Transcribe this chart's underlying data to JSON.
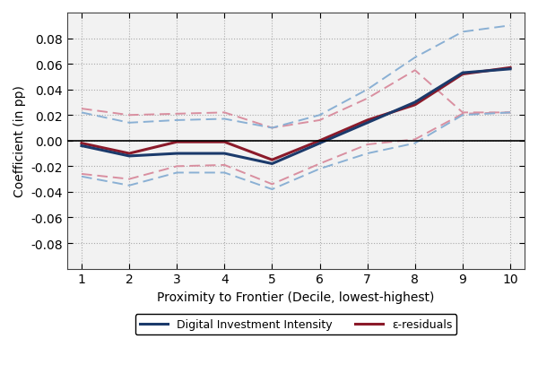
{
  "x": [
    1,
    2,
    3,
    4,
    5,
    6,
    7,
    8,
    9,
    10
  ],
  "digital_main": [
    -0.004,
    -0.012,
    -0.01,
    -0.01,
    -0.018,
    -0.002,
    0.014,
    0.03,
    0.053,
    0.056
  ],
  "digital_upper": [
    0.022,
    0.014,
    0.016,
    0.017,
    0.01,
    0.02,
    0.04,
    0.065,
    0.085,
    0.09
  ],
  "digital_lower": [
    -0.028,
    -0.035,
    -0.025,
    -0.025,
    -0.038,
    -0.022,
    -0.01,
    -0.002,
    0.02,
    0.022
  ],
  "residual_main": [
    -0.002,
    -0.01,
    -0.001,
    -0.001,
    -0.015,
    0.0,
    0.016,
    0.028,
    0.052,
    0.057
  ],
  "residual_upper": [
    0.025,
    0.02,
    0.021,
    0.022,
    0.01,
    0.016,
    0.033,
    0.055,
    0.022,
    0.022
  ],
  "residual_lower": [
    -0.026,
    -0.03,
    -0.02,
    -0.019,
    -0.034,
    -0.018,
    -0.003,
    0.001,
    0.021,
    0.022
  ],
  "digital_color": "#1b3a6b",
  "residual_color": "#8b1a2a",
  "digital_ci_color": "#8ab0d4",
  "residual_ci_color": "#d98fa0",
  "xlabel": "Proximity to Frontier (Decile, lowest-highest)",
  "ylabel": "Coefficient (in pp)",
  "ylim": [
    -0.1,
    0.1
  ],
  "yticks": [
    -0.08,
    -0.06,
    -0.04,
    -0.02,
    0.0,
    0.02,
    0.04,
    0.06,
    0.08
  ],
  "xticks": [
    1,
    2,
    3,
    4,
    5,
    6,
    7,
    8,
    9,
    10
  ],
  "legend_digital": "Digital Investment Intensity",
  "legend_residual": "ε-residuals",
  "background_color": "#ffffff",
  "plot_bg_color": "#f2f2f2",
  "grid_color": "#aaaaaa"
}
